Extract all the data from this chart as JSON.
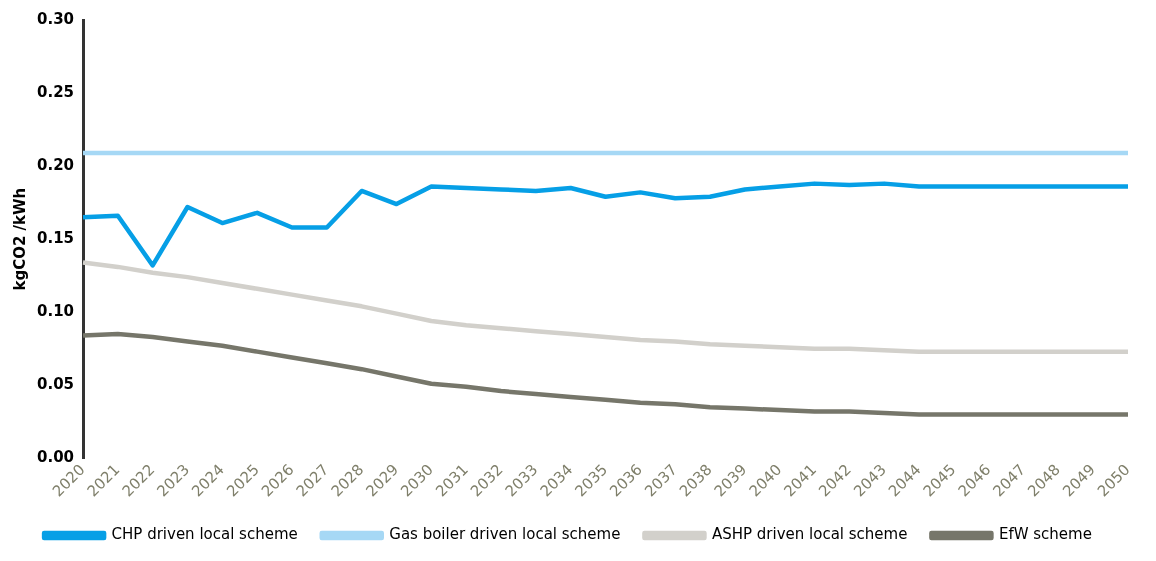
{
  "chart_data": {
    "type": "line",
    "ylabel": "kgCO2 /kWh",
    "categories": [
      "2020",
      "2021",
      "2022",
      "2023",
      "2024",
      "2025",
      "2026",
      "2027",
      "2028",
      "2029",
      "2030",
      "2031",
      "2032",
      "2033",
      "2034",
      "2035",
      "2036",
      "2037",
      "2038",
      "2039",
      "2040",
      "2041",
      "2042",
      "2043",
      "2044",
      "2045",
      "2046",
      "2047",
      "2048",
      "2049",
      "2050"
    ],
    "series": [
      {
        "name": "CHP driven local scheme",
        "color": "#069fe6",
        "values": [
          0.165,
          0.166,
          0.132,
          0.172,
          0.161,
          0.168,
          0.158,
          0.158,
          0.183,
          0.174,
          0.186,
          0.185,
          0.184,
          0.183,
          0.185,
          0.179,
          0.182,
          0.178,
          0.179,
          0.184,
          0.186,
          0.188,
          0.187,
          0.188,
          0.186,
          0.186,
          0.186,
          0.186,
          0.186,
          0.186,
          0.186
        ]
      },
      {
        "name": "Gas boiler driven local scheme",
        "color": "#a6d8f5",
        "values": [
          0.209,
          0.209,
          0.209,
          0.209,
          0.209,
          0.209,
          0.209,
          0.209,
          0.209,
          0.209,
          0.209,
          0.209,
          0.209,
          0.209,
          0.209,
          0.209,
          0.209,
          0.209,
          0.209,
          0.209,
          0.209,
          0.209,
          0.209,
          0.209,
          0.209,
          0.209,
          0.209,
          0.209,
          0.209,
          0.209,
          0.209
        ]
      },
      {
        "name": "ASHP driven local scheme",
        "color": "#d2d0cb",
        "values": [
          0.134,
          0.131,
          0.127,
          0.124,
          0.12,
          0.116,
          0.112,
          0.108,
          0.104,
          0.099,
          0.094,
          0.091,
          0.089,
          0.087,
          0.085,
          0.083,
          0.081,
          0.08,
          0.078,
          0.077,
          0.076,
          0.075,
          0.075,
          0.074,
          0.073,
          0.073,
          0.073,
          0.073,
          0.073,
          0.073,
          0.073
        ]
      },
      {
        "name": "EfW scheme",
        "color": "#76766a",
        "values": [
          0.084,
          0.085,
          0.083,
          0.08,
          0.077,
          0.073,
          0.069,
          0.065,
          0.061,
          0.056,
          0.051,
          0.049,
          0.046,
          0.044,
          0.042,
          0.04,
          0.038,
          0.037,
          0.035,
          0.034,
          0.033,
          0.032,
          0.032,
          0.031,
          0.03,
          0.03,
          0.03,
          0.03,
          0.03,
          0.03,
          0.03
        ]
      }
    ],
    "ylim": [
      0,
      0.3
    ],
    "yticks": [
      {
        "value": 0,
        "label": "0.00"
      },
      {
        "value": 0.05,
        "label": "0.05"
      },
      {
        "value": 0.1,
        "label": "0.10"
      },
      {
        "value": 0.15,
        "label": "0.15"
      },
      {
        "value": 0.2,
        "label": "0.20"
      },
      {
        "value": 0.25,
        "label": "0.25"
      },
      {
        "value": 0.3,
        "label": "0.30"
      }
    ],
    "grid": false,
    "legend": "bottom",
    "marker": "none",
    "line_style": "solid"
  }
}
